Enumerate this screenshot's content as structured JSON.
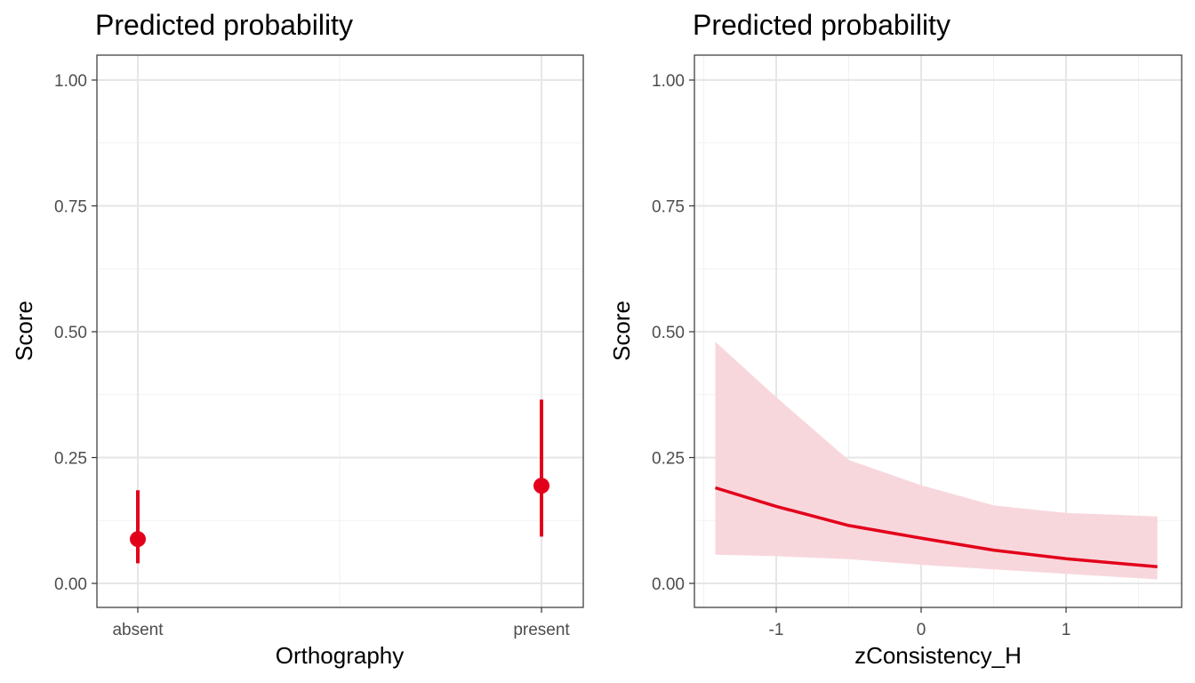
{
  "colors": {
    "accent": "#e3001b",
    "ribbon": "#f8d7dc",
    "grid_major": "#e6e6e6",
    "grid_minor": "#f2f2f2",
    "panel_border": "#333333",
    "tick_text": "#4d4d4d"
  },
  "chart_data": [
    {
      "type": "scatter",
      "title": "Predicted probability",
      "xlabel": "Orthography",
      "ylabel": "Score",
      "categories": [
        "absent",
        "present"
      ],
      "ylim": [
        0,
        1
      ],
      "yticks": [
        "0.00",
        "0.25",
        "0.50",
        "0.75",
        "1.00"
      ],
      "grid": true,
      "points": [
        {
          "category": "absent",
          "y": 0.088,
          "lower": 0.04,
          "upper": 0.185
        },
        {
          "category": "present",
          "y": 0.194,
          "lower": 0.093,
          "upper": 0.365
        }
      ]
    },
    {
      "type": "line",
      "title": "Predicted probability",
      "xlabel": "zConsistency_H",
      "ylabel": "Score",
      "xlim": [
        -1.5,
        1.7
      ],
      "ylim": [
        0,
        1
      ],
      "xticks": [
        "-1",
        "0",
        "1"
      ],
      "yticks": [
        "0.00",
        "0.25",
        "0.50",
        "0.75",
        "1.00"
      ],
      "grid": true,
      "x": [
        -1.42,
        -1.0,
        -0.5,
        0.0,
        0.5,
        1.0,
        1.63
      ],
      "y": [
        0.19,
        0.153,
        0.115,
        0.09,
        0.066,
        0.049,
        0.033
      ],
      "ci_lower": [
        0.057,
        0.054,
        0.048,
        0.037,
        0.028,
        0.019,
        0.008
      ],
      "ci_upper": [
        0.48,
        0.37,
        0.245,
        0.195,
        0.155,
        0.14,
        0.133
      ]
    }
  ]
}
